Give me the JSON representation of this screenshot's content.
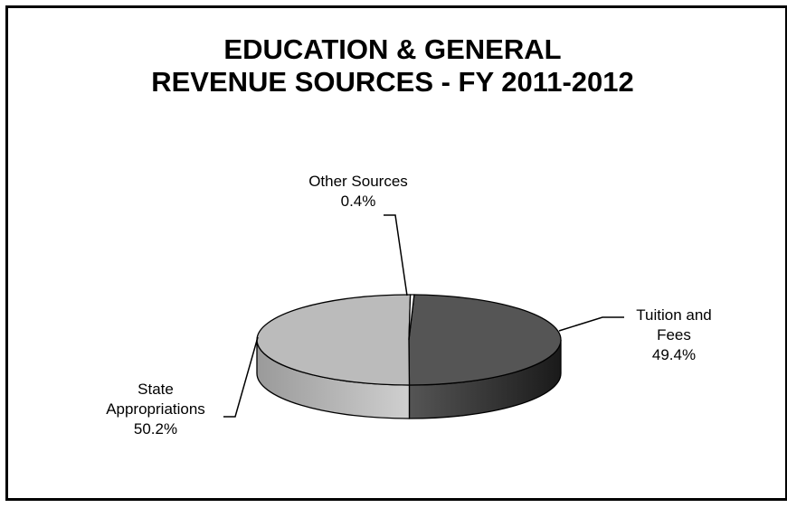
{
  "chart_data": {
    "type": "pie",
    "title_lines": [
      "EDUCATION & GENERAL",
      "REVENUE SOURCES - FY 2011-2012"
    ],
    "slices": [
      {
        "name": "Tuition and Fees",
        "label_lines": [
          "Tuition and",
          "Fees"
        ],
        "value": 49.4,
        "value_label": "49.4%",
        "color": "#555555",
        "side_color": "#444444"
      },
      {
        "name": "State Appropriations",
        "label_lines": [
          "State",
          "Appropriations"
        ],
        "value": 50.2,
        "value_label": "50.2%",
        "color": "#bbbbbb",
        "side_color": "#a8a8a8"
      },
      {
        "name": "Other Sources",
        "label_lines": [
          "Other Sources"
        ],
        "value": 0.4,
        "value_label": "0.4%",
        "color": "#ffffff",
        "side_color": "#eeeeee"
      }
    ],
    "legend": "none"
  }
}
